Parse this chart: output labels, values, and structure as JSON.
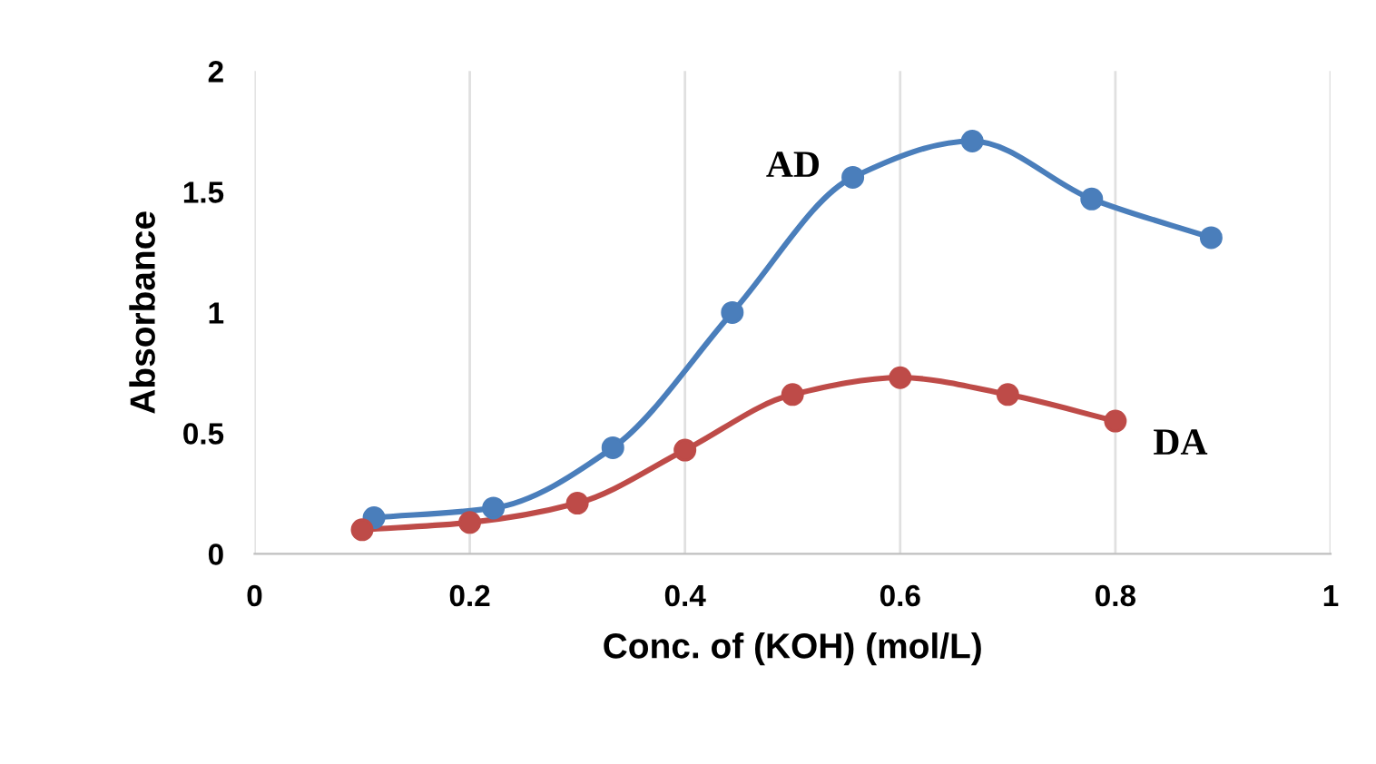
{
  "chart_data": {
    "type": "line",
    "xlabel": "Conc. of (KOH) (mol/L)",
    "ylabel": "Absorbance",
    "xlim": [
      0,
      1
    ],
    "xticks": [
      0,
      0.2,
      0.4,
      0.6,
      0.8,
      1
    ],
    "ylim": [
      0,
      2
    ],
    "yticks": [
      0,
      0.5,
      1,
      1.5,
      2
    ],
    "grid": "x",
    "marker": "circle",
    "line_style": "solid",
    "legend": false,
    "series": [
      {
        "name": "AD",
        "color": "#4a7ebb",
        "x": [
          0.111,
          0.222,
          0.333,
          0.444,
          0.556,
          0.667,
          0.778,
          0.889
        ],
        "values": [
          0.15,
          0.19,
          0.44,
          1.0,
          1.56,
          1.71,
          1.47,
          1.31
        ]
      },
      {
        "name": "DA",
        "color": "#be4b48",
        "x": [
          0.1,
          0.2,
          0.3,
          0.4,
          0.5,
          0.6,
          0.7,
          0.8
        ],
        "values": [
          0.1,
          0.13,
          0.21,
          0.43,
          0.66,
          0.73,
          0.66,
          0.55
        ]
      }
    ]
  }
}
